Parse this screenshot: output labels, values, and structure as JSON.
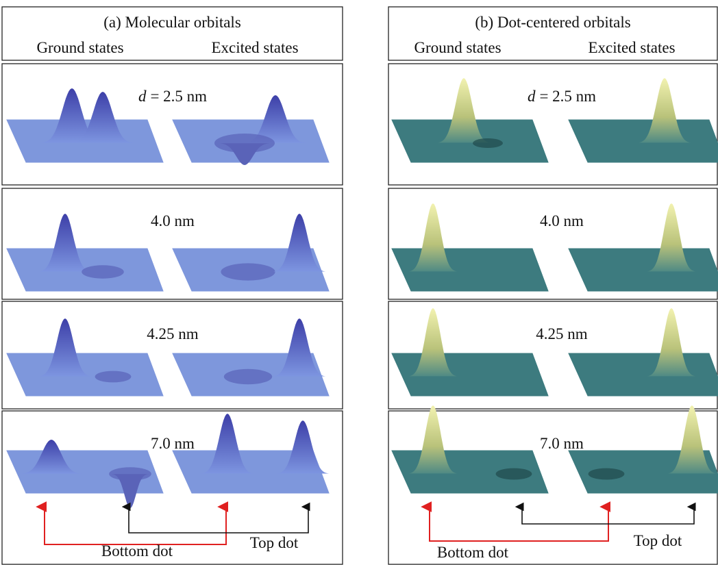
{
  "panels": [
    {
      "title": "(a) Molecular orbitals",
      "column_headers": [
        "Ground states",
        "Excited states"
      ],
      "rows": [
        {
          "variable": "d",
          "label": "= 2.5 nm"
        },
        {
          "label": "4.0 nm"
        },
        {
          "label": "4.25 nm"
        },
        {
          "label": "7.0 nm"
        }
      ],
      "arrow_labels": [
        "Bottom dot",
        "Top dot"
      ]
    },
    {
      "title": "(b) Dot-centered orbitals",
      "column_headers": [
        "Ground states",
        "Excited states"
      ],
      "rows": [
        {
          "variable": "d",
          "label": "= 2.5 nm"
        },
        {
          "label": "4.0 nm"
        },
        {
          "label": "4.25 nm"
        },
        {
          "label": "7.0 nm"
        }
      ],
      "arrow_labels": [
        "Bottom dot",
        "Top dot"
      ]
    }
  ]
}
